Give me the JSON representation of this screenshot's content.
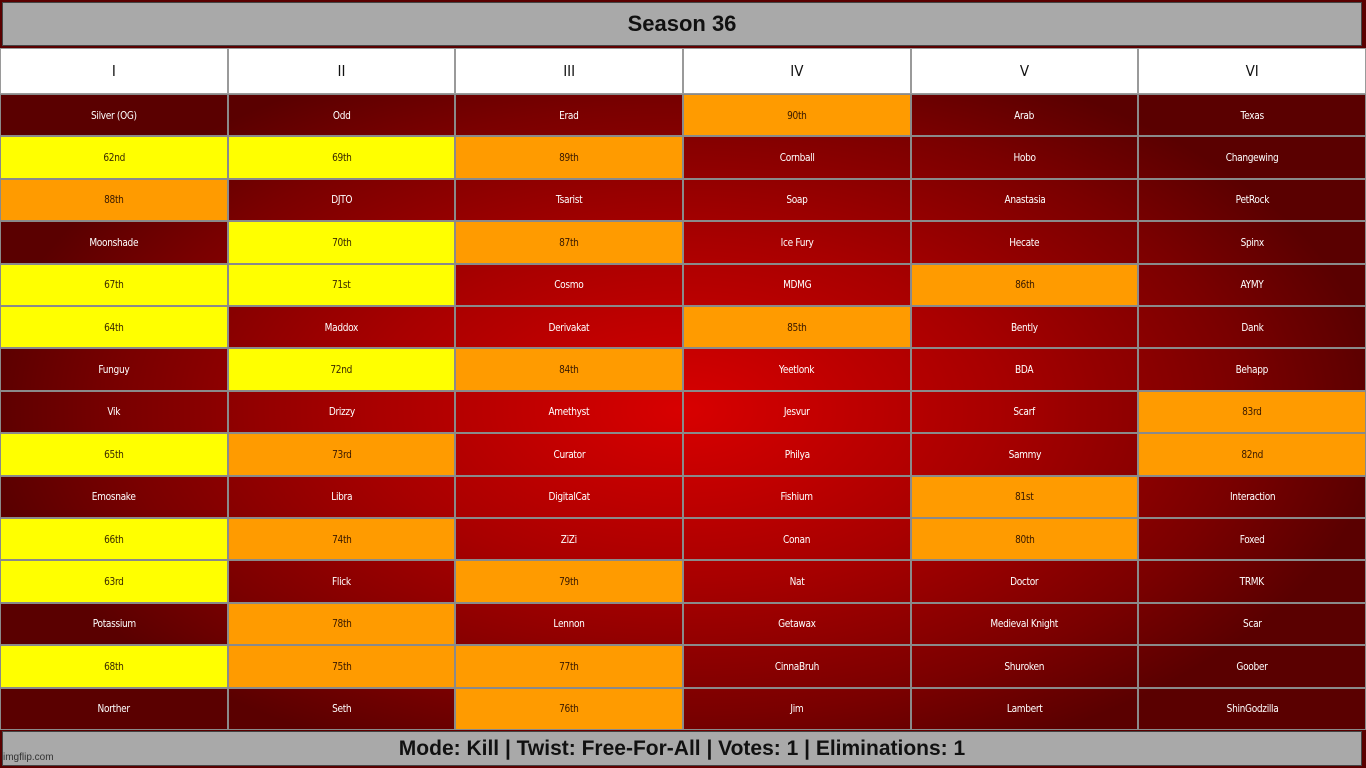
{
  "title": "Season 36",
  "columns": [
    "I",
    "II",
    "III",
    "IV",
    "V",
    "VI"
  ],
  "colors": {
    "eliminated_dark": "#7a0000",
    "active_red": "#c00000",
    "orange": "#ff9b00",
    "yellow": "#ffff00",
    "bar_gray": "#a9a9a9"
  },
  "rows": [
    [
      {
        "text": "Silver (OG)",
        "status": "red"
      },
      {
        "text": "Odd",
        "status": "red"
      },
      {
        "text": "Erad",
        "status": "red"
      },
      {
        "text": "90th",
        "status": "orange"
      },
      {
        "text": "Arab",
        "status": "red"
      },
      {
        "text": "Texas",
        "status": "red"
      }
    ],
    [
      {
        "text": "62nd",
        "status": "yellow"
      },
      {
        "text": "69th",
        "status": "yellow"
      },
      {
        "text": "89th",
        "status": "orange"
      },
      {
        "text": "Cornball",
        "status": "red"
      },
      {
        "text": "Hobo",
        "status": "red"
      },
      {
        "text": "Changewing",
        "status": "red"
      }
    ],
    [
      {
        "text": "88th",
        "status": "orange"
      },
      {
        "text": "DJTO",
        "status": "red"
      },
      {
        "text": "Tsarist",
        "status": "red"
      },
      {
        "text": "Soap",
        "status": "red"
      },
      {
        "text": "Anastasia",
        "status": "red"
      },
      {
        "text": "PetRock",
        "status": "red"
      }
    ],
    [
      {
        "text": "Moonshade",
        "status": "red"
      },
      {
        "text": "70th",
        "status": "yellow"
      },
      {
        "text": "87th",
        "status": "orange"
      },
      {
        "text": "Ice Fury",
        "status": "red"
      },
      {
        "text": "Hecate",
        "status": "red"
      },
      {
        "text": "Spinx",
        "status": "red"
      }
    ],
    [
      {
        "text": "67th",
        "status": "yellow"
      },
      {
        "text": "71st",
        "status": "yellow"
      },
      {
        "text": "Cosmo",
        "status": "red"
      },
      {
        "text": "MDMG",
        "status": "red"
      },
      {
        "text": "86th",
        "status": "orange"
      },
      {
        "text": "AYMY",
        "status": "red"
      }
    ],
    [
      {
        "text": "64th",
        "status": "yellow"
      },
      {
        "text": "Maddox",
        "status": "red"
      },
      {
        "text": "Derivakat",
        "status": "red"
      },
      {
        "text": "85th",
        "status": "orange"
      },
      {
        "text": "Bently",
        "status": "red"
      },
      {
        "text": "Dank",
        "status": "red"
      }
    ],
    [
      {
        "text": "Funguy",
        "status": "red"
      },
      {
        "text": "72nd",
        "status": "yellow"
      },
      {
        "text": "84th",
        "status": "orange"
      },
      {
        "text": "Yeetlonk",
        "status": "red"
      },
      {
        "text": "BDA",
        "status": "red"
      },
      {
        "text": "Behapp",
        "status": "red"
      }
    ],
    [
      {
        "text": "Vik",
        "status": "red"
      },
      {
        "text": "Drizzy",
        "status": "red"
      },
      {
        "text": "Amethyst",
        "status": "red"
      },
      {
        "text": "Jesvur",
        "status": "red"
      },
      {
        "text": "Scarf",
        "status": "red"
      },
      {
        "text": "83rd",
        "status": "orange"
      }
    ],
    [
      {
        "text": "65th",
        "status": "yellow"
      },
      {
        "text": "73rd",
        "status": "orange"
      },
      {
        "text": "Curator",
        "status": "red"
      },
      {
        "text": "Philya",
        "status": "red"
      },
      {
        "text": "Sammy",
        "status": "red"
      },
      {
        "text": "82nd",
        "status": "orange"
      }
    ],
    [
      {
        "text": "Emosnake",
        "status": "red"
      },
      {
        "text": "Libra",
        "status": "red"
      },
      {
        "text": "DigitalCat",
        "status": "red"
      },
      {
        "text": "Fishium",
        "status": "red"
      },
      {
        "text": "81st",
        "status": "orange"
      },
      {
        "text": "Interaction",
        "status": "red"
      }
    ],
    [
      {
        "text": "66th",
        "status": "yellow"
      },
      {
        "text": "74th",
        "status": "orange"
      },
      {
        "text": "ZiZi",
        "status": "red"
      },
      {
        "text": "Conan",
        "status": "red"
      },
      {
        "text": "80th",
        "status": "orange"
      },
      {
        "text": "Foxed",
        "status": "red"
      }
    ],
    [
      {
        "text": "63rd",
        "status": "yellow"
      },
      {
        "text": "Flick",
        "status": "red"
      },
      {
        "text": "79th",
        "status": "orange"
      },
      {
        "text": "Nat",
        "status": "red"
      },
      {
        "text": "Doctor",
        "status": "red"
      },
      {
        "text": "TRMK",
        "status": "red"
      }
    ],
    [
      {
        "text": "Potassium",
        "status": "red"
      },
      {
        "text": "78th",
        "status": "orange"
      },
      {
        "text": "Lennon",
        "status": "red"
      },
      {
        "text": "Getawax",
        "status": "red"
      },
      {
        "text": "Medieval Knight",
        "status": "red"
      },
      {
        "text": "Scar",
        "status": "red"
      }
    ],
    [
      {
        "text": "68th",
        "status": "yellow"
      },
      {
        "text": "75th",
        "status": "orange"
      },
      {
        "text": "77th",
        "status": "orange"
      },
      {
        "text": "CinnaBruh",
        "status": "red"
      },
      {
        "text": "Shuroken",
        "status": "red"
      },
      {
        "text": "Goober",
        "status": "red"
      }
    ],
    [
      {
        "text": "Norther",
        "status": "red"
      },
      {
        "text": "Seth",
        "status": "red"
      },
      {
        "text": "76th",
        "status": "orange"
      },
      {
        "text": "Jim",
        "status": "red"
      },
      {
        "text": "Lambert",
        "status": "red"
      },
      {
        "text": "ShinGodzilla",
        "status": "red"
      }
    ]
  ],
  "footer": "Mode: Kill | Twist: Free-For-All | Votes: 1 | Eliminations: 1",
  "watermark": "imgflip.com"
}
